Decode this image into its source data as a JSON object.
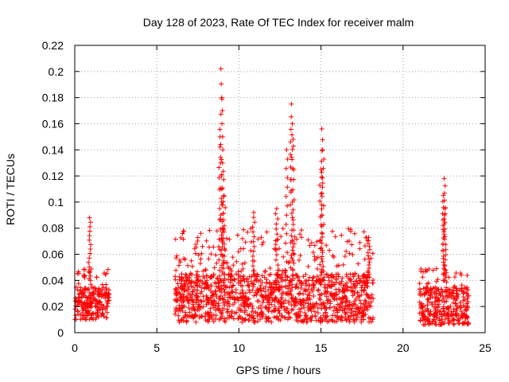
{
  "chart_data": {
    "type": "scatter",
    "title": "Day 128 of 2023, Rate Of TEC Index for receiver malm",
    "xlabel": "GPS time / hours",
    "ylabel": "ROTI / TECUs",
    "xlim": [
      0,
      25
    ],
    "ylim": [
      0,
      0.22
    ],
    "xticks": [
      0,
      5,
      10,
      15,
      20,
      25
    ],
    "yticks": [
      0,
      0.02,
      0.04,
      0.06,
      0.08,
      0.1,
      0.12,
      0.14,
      0.16,
      0.18,
      0.2,
      0.22
    ],
    "grid": true,
    "legend": "none",
    "marker": "plus",
    "color": "#ff0000",
    "clusters": [
      {
        "x_start": 0.0,
        "x_end": 2.1,
        "base_low": 0.01,
        "base_high": 0.035,
        "spike_max": 0.05
      },
      {
        "x_start": 6.1,
        "x_end": 18.2,
        "base_low": 0.008,
        "base_high": 0.045,
        "spike_max": 0.08
      },
      {
        "x_start": 21.0,
        "x_end": 24.0,
        "base_low": 0.006,
        "base_high": 0.035,
        "spike_max": 0.05
      }
    ],
    "peaks": [
      {
        "x": 0.9,
        "y": 0.088
      },
      {
        "x": 8.9,
        "y": 0.202
      },
      {
        "x": 8.95,
        "y": 0.18
      },
      {
        "x": 8.85,
        "y": 0.15
      },
      {
        "x": 9.0,
        "y": 0.13
      },
      {
        "x": 9.1,
        "y": 0.105
      },
      {
        "x": 10.9,
        "y": 0.092
      },
      {
        "x": 12.3,
        "y": 0.095
      },
      {
        "x": 12.9,
        "y": 0.14
      },
      {
        "x": 13.2,
        "y": 0.175
      },
      {
        "x": 13.25,
        "y": 0.16
      },
      {
        "x": 13.3,
        "y": 0.148
      },
      {
        "x": 15.05,
        "y": 0.156
      },
      {
        "x": 15.1,
        "y": 0.14
      },
      {
        "x": 15.0,
        "y": 0.125
      },
      {
        "x": 17.9,
        "y": 0.073
      },
      {
        "x": 22.5,
        "y": 0.118
      },
      {
        "x": 22.45,
        "y": 0.105
      },
      {
        "x": 22.55,
        "y": 0.095
      }
    ]
  }
}
